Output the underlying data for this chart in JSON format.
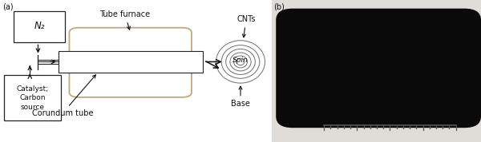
{
  "fig_width": 6.0,
  "fig_height": 1.78,
  "dpi": 100,
  "bg_color": "#ffffff",
  "label_a": "(a)",
  "label_b": "(b)",
  "text_color": "#111111",
  "furnace_box_color": "#c0a882",
  "tube_furnace_label": "Tube furnace",
  "corundum_label": "Corundum tube",
  "n2_label": "N₂",
  "catalyst_label": "Catalyst;\nCarbon\nsource",
  "cnts_label": "CNTs",
  "spin_label": "Spin",
  "base_label": "Base",
  "line_color": "#222222",
  "arrow_color": "#111111",
  "spiral_color": "#777777",
  "photo_bg": "#d0cfc8",
  "sponge_color": "#080808",
  "ruler_color": "#555555"
}
